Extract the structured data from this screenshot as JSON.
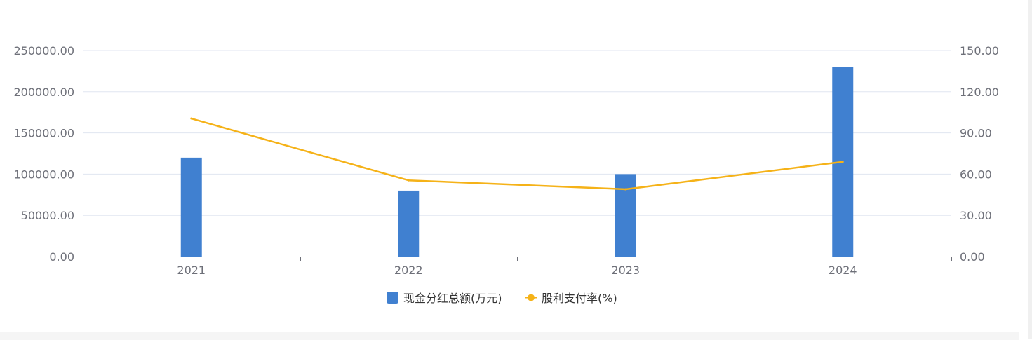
{
  "colors": {
    "bar": "#4080d0",
    "line": "#f5b218",
    "grid": "#e0e6f1",
    "axis": "#6e7079"
  },
  "chart_data": {
    "type": "bar",
    "categories": [
      "2021",
      "2022",
      "2023",
      "2024"
    ],
    "series": [
      {
        "name": "现金分红总额(万元)",
        "type": "bar",
        "axis": "left",
        "values": [
          120000,
          80000,
          100000,
          230000
        ]
      },
      {
        "name": "股利支付率(%)",
        "type": "line",
        "axis": "right",
        "values": [
          100.5,
          55.5,
          49.0,
          69.0
        ]
      }
    ],
    "y_left": {
      "ylim": [
        0,
        250000
      ],
      "ticks": [
        "0.00",
        "50000.00",
        "100000.00",
        "150000.00",
        "200000.00",
        "250000.00"
      ]
    },
    "y_right": {
      "ylim": [
        0,
        150
      ],
      "ticks": [
        "0.00",
        "30.00",
        "60.00",
        "90.00",
        "120.00",
        "150.00"
      ]
    },
    "grid": true,
    "legend": "bottom-center"
  }
}
